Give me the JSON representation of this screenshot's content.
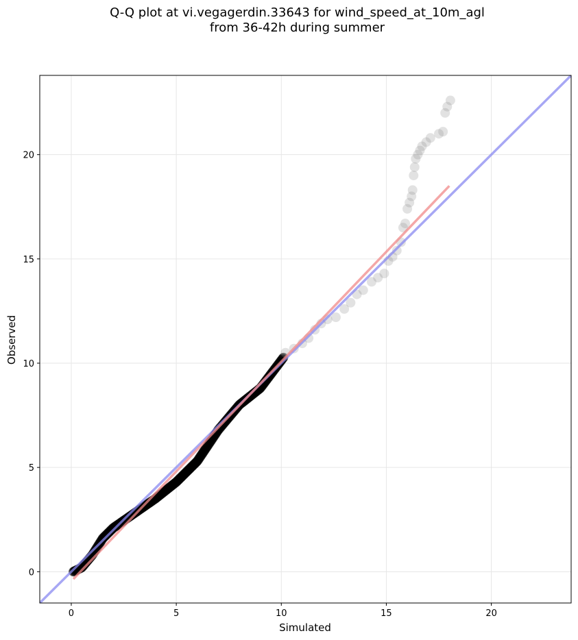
{
  "title_lines": [
    "Q-Q plot at vi.vegagerdin.33643 for wind_speed_at_10m_agl",
    "from 36-42h during summer"
  ],
  "chart_data": {
    "type": "scatter",
    "xlabel": "Simulated",
    "ylabel": "Observed",
    "xlim": [
      -1.5,
      23.8
    ],
    "ylim": [
      -1.5,
      23.8
    ],
    "xticks": [
      0,
      5,
      10,
      15,
      20
    ],
    "yticks": [
      0,
      5,
      10,
      15,
      20
    ],
    "grid": true,
    "identity_line": {
      "color": "#8a8af0",
      "from": [
        -1.5,
        -1.5
      ],
      "to": [
        23.8,
        23.8
      ]
    },
    "fit_line": {
      "color": "#f08a8a",
      "from": [
        0.1,
        -0.35
      ],
      "to": [
        18.0,
        18.5
      ]
    },
    "point_color": "#000000",
    "tail_points": [
      [
        10.2,
        10.5
      ],
      [
        10.6,
        10.7
      ],
      [
        11.0,
        10.95
      ],
      [
        11.3,
        11.2
      ],
      [
        11.6,
        11.6
      ],
      [
        11.9,
        11.9
      ],
      [
        12.2,
        12.1
      ],
      [
        12.6,
        12.2
      ],
      [
        13.0,
        12.6
      ],
      [
        13.3,
        12.9
      ],
      [
        13.6,
        13.3
      ],
      [
        13.9,
        13.5
      ],
      [
        14.3,
        13.9
      ],
      [
        14.6,
        14.1
      ],
      [
        14.9,
        14.3
      ],
      [
        15.1,
        14.9
      ],
      [
        15.3,
        15.1
      ],
      [
        15.5,
        15.4
      ],
      [
        15.7,
        15.8
      ],
      [
        15.8,
        16.5
      ],
      [
        15.9,
        16.7
      ],
      [
        16.0,
        17.4
      ],
      [
        16.1,
        17.7
      ],
      [
        16.2,
        18.0
      ],
      [
        16.25,
        18.3
      ],
      [
        16.3,
        19.0
      ],
      [
        16.35,
        19.4
      ],
      [
        16.4,
        19.8
      ],
      [
        16.5,
        20.0
      ],
      [
        16.6,
        20.2
      ],
      [
        16.7,
        20.4
      ],
      [
        16.9,
        20.6
      ],
      [
        17.1,
        20.8
      ],
      [
        17.5,
        21.0
      ],
      [
        17.7,
        21.1
      ],
      [
        17.8,
        22.0
      ],
      [
        17.9,
        22.3
      ],
      [
        18.05,
        22.6
      ]
    ]
  }
}
